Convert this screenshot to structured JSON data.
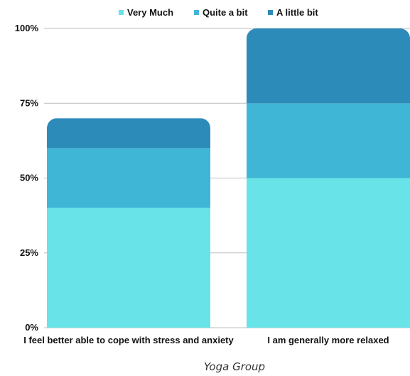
{
  "chart_data": {
    "type": "bar",
    "stacked": true,
    "categories": [
      "I feel better able to cope with stress and anxiety",
      "I am generally more relaxed"
    ],
    "series": [
      {
        "name": "Very Much",
        "values": [
          40,
          50
        ],
        "color": "#68E3E8"
      },
      {
        "name": "Quite a bit",
        "values": [
          20,
          25
        ],
        "color": "#40B6D6"
      },
      {
        "name": "A little bit",
        "values": [
          10,
          25
        ],
        "color": "#2D8BBA"
      }
    ],
    "xlabel": "Yoga Group",
    "ylabel": "",
    "ylim": [
      0,
      100
    ],
    "yticks": [
      "0%",
      "25%",
      "50%",
      "75%",
      "100%"
    ],
    "grid": true,
    "legend_position": "top-center"
  }
}
